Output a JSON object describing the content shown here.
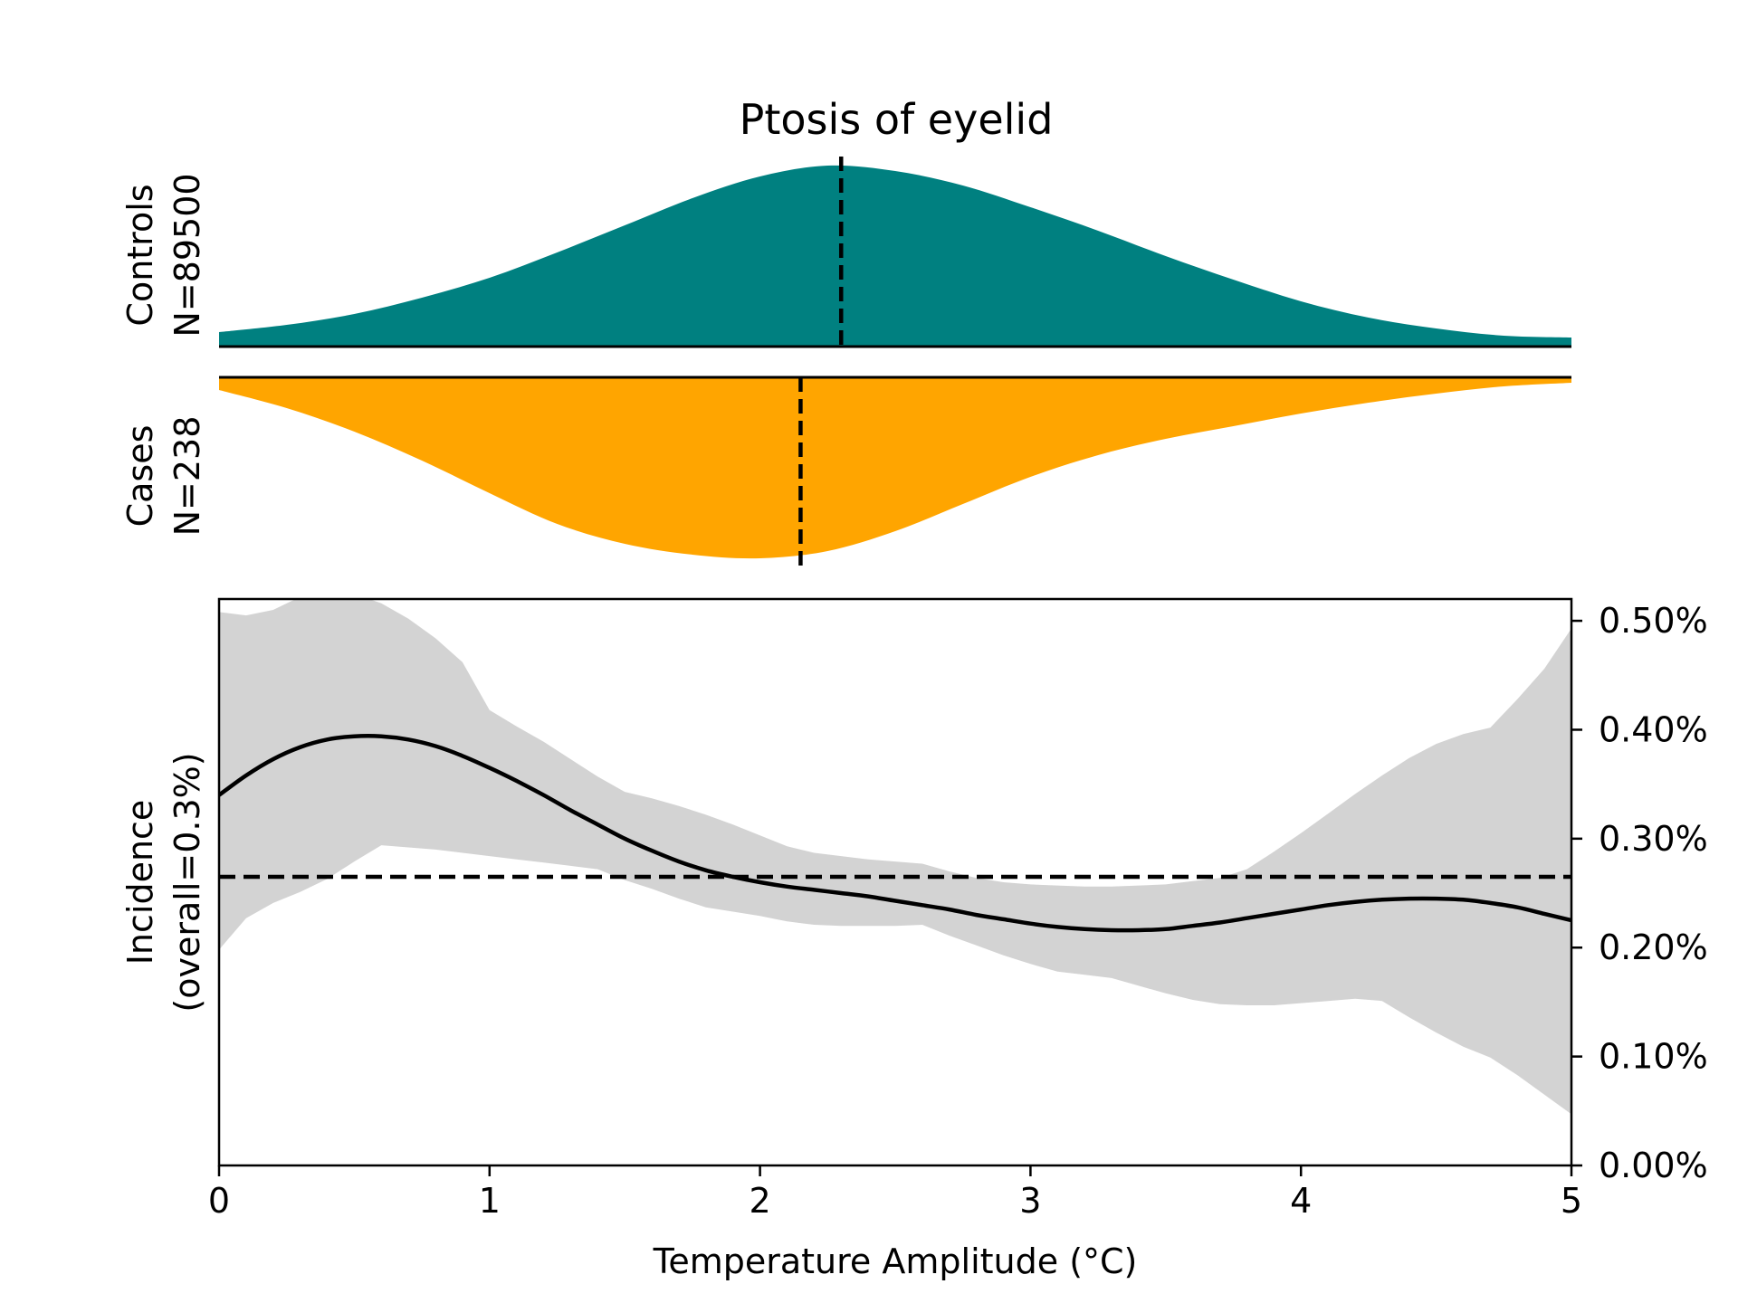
{
  "chart_data": {
    "type": "area",
    "title": "Ptosis of eyelid",
    "xlabel": "Temperature Amplitude (°C)",
    "xlim": [
      0,
      5
    ],
    "x_ticks": [
      "0",
      "1",
      "2",
      "3",
      "4",
      "5"
    ],
    "colors": {
      "controls": "#008080",
      "cases": "#FFA500",
      "ci_band": "#D3D3D3",
      "line": "#000000"
    },
    "controls": {
      "label": "Controls",
      "n_label": "N=89500",
      "median": 2.3,
      "density_x": [
        0,
        0.25,
        0.5,
        0.75,
        1,
        1.25,
        1.5,
        1.75,
        2,
        2.25,
        2.5,
        2.75,
        3,
        3.25,
        3.5,
        3.75,
        4,
        4.25,
        4.5,
        4.75,
        5
      ],
      "density": [
        0.08,
        0.12,
        0.18,
        0.27,
        0.38,
        0.52,
        0.67,
        0.82,
        0.94,
        1.0,
        0.97,
        0.89,
        0.77,
        0.64,
        0.5,
        0.37,
        0.25,
        0.16,
        0.1,
        0.06,
        0.05
      ]
    },
    "cases": {
      "label": "Cases",
      "n_label": "N=238",
      "median": 2.15,
      "density_x": [
        0,
        0.25,
        0.5,
        0.75,
        1,
        1.25,
        1.5,
        1.75,
        2,
        2.25,
        2.5,
        2.75,
        3,
        3.25,
        3.5,
        3.75,
        4,
        4.25,
        4.5,
        4.75,
        5
      ],
      "density": [
        0.07,
        0.17,
        0.3,
        0.46,
        0.64,
        0.81,
        0.92,
        0.98,
        1.0,
        0.96,
        0.85,
        0.7,
        0.55,
        0.43,
        0.34,
        0.27,
        0.2,
        0.14,
        0.09,
        0.05,
        0.03
      ]
    },
    "incidence": {
      "ylabel_line1": "Incidence",
      "ylabel_line2": "(overall=0.3%)",
      "ylim": [
        0,
        0.0052
      ],
      "y_ticks": [
        {
          "value": 0.0,
          "label": "0.00%"
        },
        {
          "value": 0.001,
          "label": "0.10%"
        },
        {
          "value": 0.002,
          "label": "0.20%"
        },
        {
          "value": 0.003,
          "label": "0.30%"
        },
        {
          "value": 0.004,
          "label": "0.40%"
        },
        {
          "value": 0.005,
          "label": "0.50%"
        }
      ],
      "overall": 0.00265,
      "x": [
        0,
        0.1,
        0.2,
        0.3,
        0.4,
        0.5,
        0.6,
        0.7,
        0.8,
        0.9,
        1.0,
        1.1,
        1.2,
        1.3,
        1.4,
        1.5,
        1.6,
        1.7,
        1.8,
        1.9,
        2.0,
        2.1,
        2.2,
        2.3,
        2.4,
        2.5,
        2.6,
        2.7,
        2.8,
        2.9,
        3.0,
        3.1,
        3.2,
        3.3,
        3.4,
        3.5,
        3.6,
        3.7,
        3.8,
        3.9,
        4.0,
        4.1,
        4.2,
        4.3,
        4.4,
        4.5,
        4.6,
        4.7,
        4.8,
        4.9,
        5.0
      ],
      "y": [
        0.0034,
        0.00358,
        0.00373,
        0.00384,
        0.00391,
        0.00394,
        0.00394,
        0.00391,
        0.00385,
        0.00376,
        0.00365,
        0.00353,
        0.0034,
        0.00326,
        0.00313,
        0.003,
        0.00289,
        0.00279,
        0.00271,
        0.00265,
        0.0026,
        0.00256,
        0.00253,
        0.0025,
        0.00247,
        0.00243,
        0.00239,
        0.00235,
        0.0023,
        0.00226,
        0.00222,
        0.00219,
        0.00217,
        0.00216,
        0.00216,
        0.00217,
        0.0022,
        0.00223,
        0.00227,
        0.00231,
        0.00235,
        0.00239,
        0.00242,
        0.00244,
        0.00245,
        0.00245,
        0.00244,
        0.00241,
        0.00237,
        0.00231,
        0.00225
      ],
      "ci_x": [
        0,
        0.1,
        0.2,
        0.3,
        0.4,
        0.5,
        0.6,
        0.7,
        0.8,
        0.9,
        1.0,
        1.1,
        1.2,
        1.3,
        1.4,
        1.5,
        1.6,
        1.7,
        1.8,
        1.9,
        2.0,
        2.1,
        2.2,
        2.3,
        2.4,
        2.5,
        2.6,
        2.7,
        2.8,
        2.9,
        3.0,
        3.1,
        3.2,
        3.3,
        3.4,
        3.5,
        3.6,
        3.7,
        3.8,
        3.9,
        4.0,
        4.1,
        4.2,
        4.3,
        4.4,
        4.5,
        4.6,
        4.7,
        4.8,
        4.9,
        5.0
      ],
      "ci_lower": [
        0.00198,
        0.00227,
        0.00241,
        0.00251,
        0.00263,
        0.00279,
        0.00294,
        0.00292,
        0.0029,
        0.00287,
        0.00284,
        0.00281,
        0.00278,
        0.00275,
        0.00272,
        0.00262,
        0.00254,
        0.00245,
        0.00237,
        0.00233,
        0.00229,
        0.00224,
        0.00221,
        0.0022,
        0.0022,
        0.0022,
        0.00221,
        0.00211,
        0.00202,
        0.00193,
        0.00185,
        0.00178,
        0.00175,
        0.00172,
        0.00165,
        0.00158,
        0.00152,
        0.00148,
        0.00147,
        0.00147,
        0.00149,
        0.00151,
        0.00153,
        0.00151,
        0.00136,
        0.00122,
        0.00109,
        0.00099,
        0.00083,
        0.00065,
        0.00047
      ],
      "ci_upper": [
        0.00508,
        0.00505,
        0.0051,
        0.00522,
        0.0053,
        0.00525,
        0.00516,
        0.00502,
        0.00484,
        0.00462,
        0.00418,
        0.00403,
        0.00389,
        0.00373,
        0.00357,
        0.00343,
        0.00337,
        0.0033,
        0.00322,
        0.00313,
        0.00303,
        0.00293,
        0.00287,
        0.00284,
        0.00281,
        0.00279,
        0.00277,
        0.0027,
        0.00264,
        0.0026,
        0.00258,
        0.00257,
        0.00256,
        0.00256,
        0.00257,
        0.00258,
        0.00261,
        0.00264,
        0.00272,
        0.00288,
        0.00305,
        0.00323,
        0.00341,
        0.00358,
        0.00374,
        0.00387,
        0.00396,
        0.00402,
        0.00428,
        0.00456,
        0.00493
      ]
    }
  }
}
